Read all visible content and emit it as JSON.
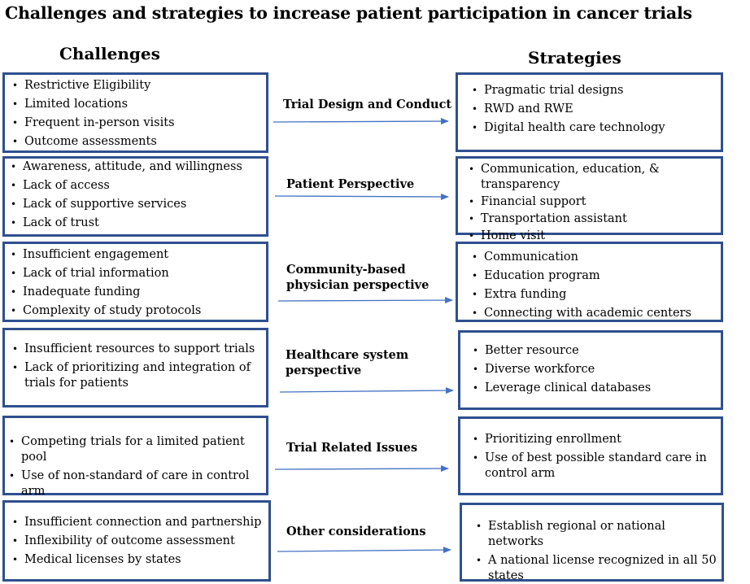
{
  "title": "Challenges and strategies to increase patient participation in cancer trials",
  "headers": {
    "challenges": "Challenges",
    "strategies": "Strategies"
  },
  "rows": [
    {
      "label": "Trial Design and Conduct",
      "challenges": [
        "Restrictive Eligibility",
        "Limited locations",
        "Frequent in-person visits",
        "Outcome assessments"
      ],
      "strategies": [
        "Pragmatic trial designs",
        "RWD and RWE",
        "Digital health care technology"
      ]
    },
    {
      "label": "Patient Perspective",
      "challenges": [
        "Awareness, attitude, and willingness",
        "Lack of access",
        "Lack of supportive services",
        "Lack of trust"
      ],
      "strategies": [
        "Communication, education, & transparency",
        "Financial support",
        "Transportation assistant",
        "Home visit"
      ]
    },
    {
      "label": "Community-based physician perspective",
      "challenges": [
        "Insufficient engagement",
        "Lack of trial information",
        "Inadequate funding",
        "Complexity of study protocols"
      ],
      "strategies": [
        "Communication",
        "Education program",
        "Extra funding",
        "Connecting with academic centers"
      ]
    },
    {
      "label": "Healthcare system perspective",
      "challenges": [
        "Insufficient resources to support trials",
        "Lack of prioritizing and integration of trials for patients"
      ],
      "strategies": [
        "Better resource",
        "Diverse workforce",
        "Leverage clinical databases"
      ]
    },
    {
      "label": "Trial Related Issues",
      "challenges": [
        "Competing trials for a limited patient pool",
        "Use of non-standard of care in control arm"
      ],
      "strategies": [
        "Prioritizing enrollment",
        "Use of best possible standard care in control arm"
      ]
    },
    {
      "label": "Other considerations",
      "challenges": [
        "Insufficient connection and partnership",
        "Inflexibility of outcome assessment",
        "Medical licenses by states"
      ],
      "strategies": [
        "Establish regional or national networks",
        "A national license recognized in all 50 states"
      ]
    }
  ],
  "colors": {
    "box_border": "#2f4f8f",
    "arrow": "#4472c4"
  }
}
